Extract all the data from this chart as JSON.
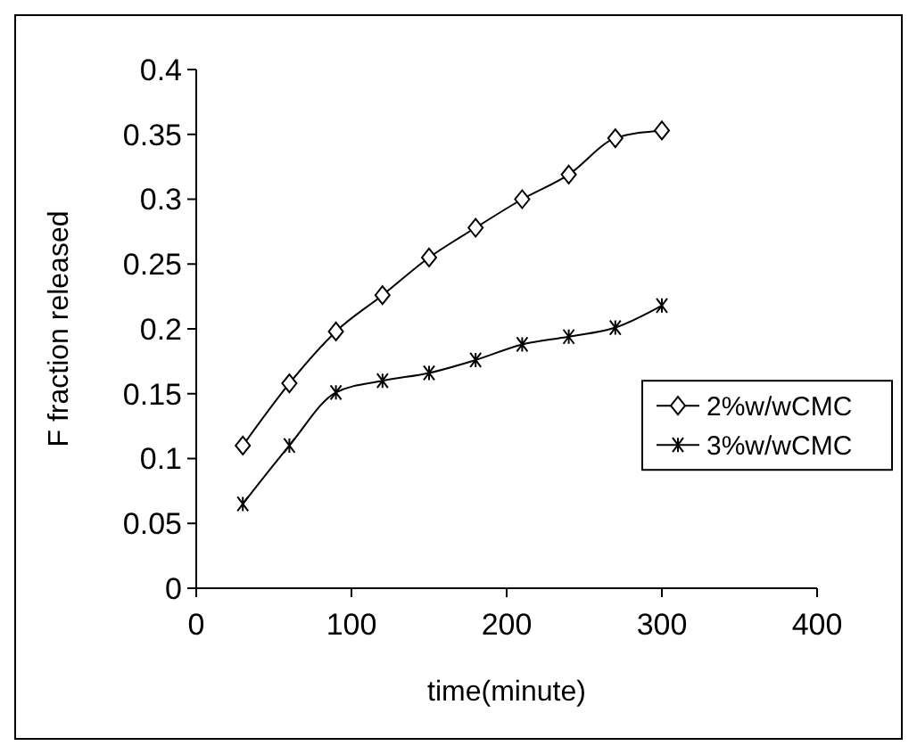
{
  "chart_data": {
    "type": "line",
    "xlabel": "time(minute)",
    "ylabel": "F fraction released",
    "xlim": [
      0,
      400
    ],
    "xticks": [
      0,
      100,
      200,
      300,
      400
    ],
    "ylim": [
      0,
      0.4
    ],
    "yticks": [
      0,
      0.05,
      0.1,
      0.15,
      0.2,
      0.25,
      0.3,
      0.35,
      0.4
    ],
    "legend": "right",
    "grid": false,
    "series": [
      {
        "name": "2%w/wCMC",
        "color": "#000000",
        "marker": "diamond",
        "x": [
          30,
          60,
          90,
          120,
          150,
          180,
          210,
          240,
          270,
          300
        ],
        "values": [
          0.11,
          0.158,
          0.198,
          0.226,
          0.255,
          0.278,
          0.3,
          0.319,
          0.347,
          0.353
        ]
      },
      {
        "name": "3%w/wCMC",
        "color": "#000000",
        "marker": "cross",
        "x": [
          30,
          60,
          90,
          120,
          150,
          180,
          210,
          240,
          270,
          300
        ],
        "values": [
          0.065,
          0.11,
          0.151,
          0.16,
          0.166,
          0.176,
          0.188,
          0.194,
          0.201,
          0.218
        ]
      }
    ]
  }
}
